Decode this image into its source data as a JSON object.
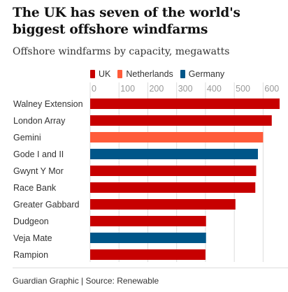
{
  "header": {
    "title": "The UK has seven of the world's biggest offshore windfarms",
    "subtitle": "Offshore windfarms by capacity, megawatts"
  },
  "footer": {
    "source": "Guardian Graphic | Source: Renewable"
  },
  "colors": {
    "UK": "#c70000",
    "Netherlands": "#ff5b3a",
    "Germany": "#005689",
    "gridline": "#dcdcdc"
  },
  "chart_data": {
    "type": "bar",
    "orientation": "horizontal",
    "title": "The UK has seven of the world's biggest offshore windfarms",
    "subtitle": "Offshore windfarms by capacity, megawatts",
    "xlim": [
      0,
      630
    ],
    "ticks": [
      0,
      100,
      200,
      300,
      400,
      500,
      600
    ],
    "grid": true,
    "legend_position": "top",
    "legend": [
      "UK",
      "Netherlands",
      "Germany"
    ],
    "categories": [
      "Walney Extension",
      "London Array",
      "Gemini",
      "Gode I and II",
      "Gwynt Y Mor",
      "Race Bank",
      "Greater Gabbard",
      "Dudgeon",
      "Veja Mate",
      "Rampion"
    ],
    "values": [
      659,
      630,
      600,
      582,
      576,
      573,
      504,
      402,
      402,
      400
    ],
    "countries": [
      "UK",
      "UK",
      "Netherlands",
      "Germany",
      "UK",
      "UK",
      "UK",
      "UK",
      "Germany",
      "UK"
    ]
  }
}
